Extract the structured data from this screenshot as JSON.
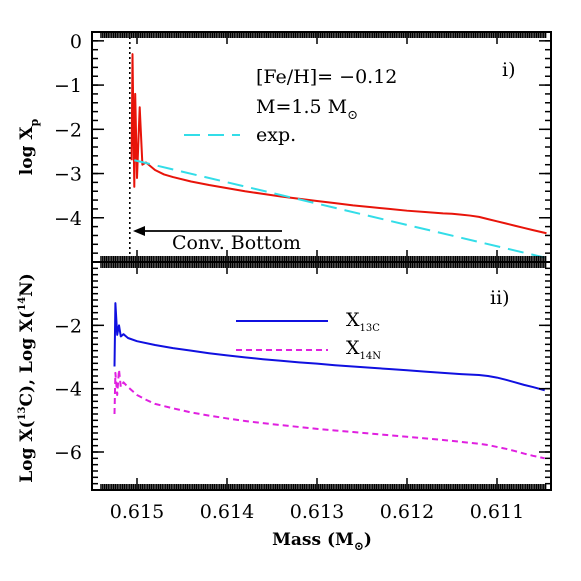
{
  "chart_data": [
    {
      "type": "line",
      "panel_label": "i)",
      "ylabel": "log X",
      "ylabel_sub": "p",
      "xlim": [
        0.6155,
        0.6104
      ],
      "ylim": [
        0.2,
        -5.0
      ],
      "yticks": [
        0,
        -1,
        -2,
        -3,
        -4
      ],
      "ytick_labels": [
        "0",
        "−1",
        "−2",
        "−3",
        "−4"
      ],
      "annotations": {
        "feh": "[Fe/H]=  −0.12",
        "mass_prefix": "M=1.5  M",
        "sun": "⊙",
        "conv_bottom": "Conv. Bottom"
      },
      "conv_bottom_x": 0.61508,
      "series": [
        {
          "name": "",
          "color": "#e8140a",
          "style": "solid",
          "x": [
            0.61506,
            0.61505,
            0.61503,
            0.61502,
            0.615,
            0.61497,
            0.61494,
            0.6149,
            0.6148,
            0.6147,
            0.6146,
            0.6144,
            0.6142,
            0.614,
            0.6138,
            0.6136,
            0.6134,
            0.6132,
            0.613,
            0.6128,
            0.6126,
            0.6124,
            0.6122,
            0.612,
            0.6118,
            0.6116,
            0.6115,
            0.6114,
            0.6113,
            0.6112,
            0.6111,
            0.611,
            0.6109,
            0.6108,
            0.6107,
            0.6106,
            0.61045
          ],
          "y": [
            -2.7,
            -0.3,
            -3.3,
            -1.2,
            -3.1,
            -1.5,
            -2.8,
            -2.75,
            -2.92,
            -3.02,
            -3.08,
            -3.18,
            -3.26,
            -3.33,
            -3.4,
            -3.46,
            -3.52,
            -3.57,
            -3.62,
            -3.67,
            -3.72,
            -3.76,
            -3.8,
            -3.84,
            -3.87,
            -3.9,
            -3.91,
            -3.93,
            -3.95,
            -3.98,
            -4.03,
            -4.08,
            -4.13,
            -4.18,
            -4.23,
            -4.28,
            -4.35
          ]
        },
        {
          "name": "exp.",
          "color": "#33dde8",
          "style": "dashed",
          "x": [
            0.61503,
            0.61047
          ],
          "y": [
            -2.7,
            -4.9
          ]
        }
      ]
    },
    {
      "type": "line",
      "panel_label": "ii)",
      "ylabel": "Log X(13C), Log X(14N)",
      "ylabel_parts": [
        "Log X(",
        "13",
        "C), Log X(",
        "14",
        "N)"
      ],
      "xlabel": "Mass (M",
      "xlabel_sun": "⊙",
      "xlabel_close": ")",
      "xlim": [
        0.6155,
        0.6104
      ],
      "ylim": [
        0.0,
        -7.2
      ],
      "xticks": [
        0.615,
        0.614,
        0.613,
        0.612,
        0.611
      ],
      "xtick_labels": [
        "0.615",
        "0.614",
        "0.613",
        "0.612",
        "0.611"
      ],
      "yticks": [
        -2,
        -4,
        -6
      ],
      "ytick_labels": [
        "−2",
        "−4",
        "−6"
      ],
      "series": [
        {
          "name": "X",
          "name_sub": "13C",
          "color": "#1010e0",
          "style": "solid",
          "x": [
            0.61525,
            0.61524,
            0.61522,
            0.6152,
            0.61518,
            0.61515,
            0.6151,
            0.615,
            0.6148,
            0.6146,
            0.6144,
            0.6142,
            0.614,
            0.6138,
            0.6136,
            0.6134,
            0.6132,
            0.613,
            0.6128,
            0.6126,
            0.6124,
            0.6122,
            0.612,
            0.6118,
            0.6116,
            0.6114,
            0.6112,
            0.6111,
            0.611,
            0.6109,
            0.6108,
            0.6107,
            0.6106,
            0.61047
          ],
          "y": [
            -3.3,
            -1.3,
            -2.3,
            -2.0,
            -2.35,
            -2.28,
            -2.4,
            -2.5,
            -2.62,
            -2.72,
            -2.8,
            -2.88,
            -2.95,
            -3.01,
            -3.07,
            -3.12,
            -3.17,
            -3.21,
            -3.26,
            -3.3,
            -3.34,
            -3.38,
            -3.42,
            -3.46,
            -3.5,
            -3.54,
            -3.57,
            -3.6,
            -3.65,
            -3.72,
            -3.8,
            -3.88,
            -3.95,
            -4.05
          ]
        },
        {
          "name": "X",
          "name_sub": "14N",
          "color": "#e020e0",
          "style": "dashed",
          "x": [
            0.61525,
            0.61524,
            0.61522,
            0.6152,
            0.61518,
            0.61515,
            0.6151,
            0.615,
            0.6149,
            0.6148,
            0.6146,
            0.6144,
            0.6142,
            0.614,
            0.6138,
            0.6136,
            0.6134,
            0.6132,
            0.613,
            0.6128,
            0.6126,
            0.6124,
            0.6122,
            0.612,
            0.6118,
            0.6116,
            0.6114,
            0.6112,
            0.6111,
            0.611,
            0.6109,
            0.6108,
            0.6107,
            0.6106,
            0.61047
          ],
          "y": [
            -4.8,
            -3.5,
            -4.2,
            -3.4,
            -3.95,
            -3.8,
            -3.95,
            -4.2,
            -4.35,
            -4.48,
            -4.62,
            -4.75,
            -4.85,
            -4.94,
            -5.02,
            -5.09,
            -5.15,
            -5.21,
            -5.27,
            -5.32,
            -5.37,
            -5.42,
            -5.47,
            -5.52,
            -5.57,
            -5.62,
            -5.68,
            -5.74,
            -5.78,
            -5.84,
            -5.9,
            -5.97,
            -6.05,
            -6.12,
            -6.2
          ]
        }
      ]
    }
  ]
}
